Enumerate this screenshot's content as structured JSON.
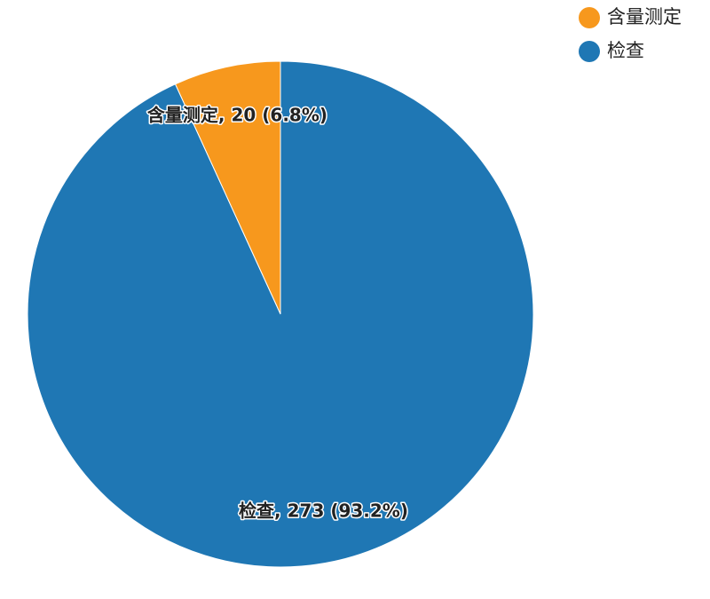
{
  "chart_data": {
    "type": "pie",
    "categories": [
      "含量测定",
      "检查"
    ],
    "values": [
      20,
      273
    ],
    "value_labels": [
      "含量测定, 20 (6.8%)",
      "检查, 273 (93.2%)"
    ],
    "colors": [
      "#f7981d",
      "#1f77b4"
    ],
    "legend": "top-right"
  }
}
